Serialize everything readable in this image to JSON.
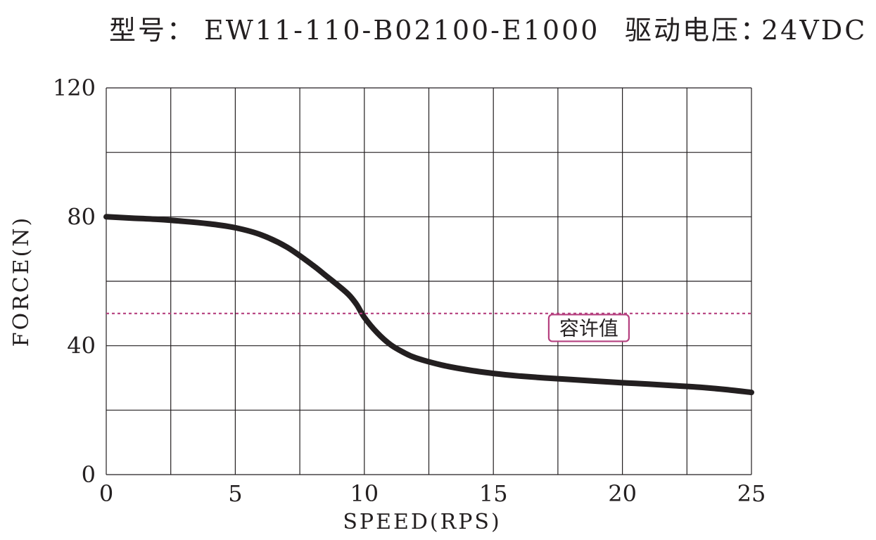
{
  "header": {
    "model_label": "型号：",
    "model_value": "EW11-110-B02100-E1000",
    "voltage_label": "驱动电压：",
    "voltage_value": "24VDC"
  },
  "chart_data": {
    "type": "line",
    "title": "",
    "xlabel": "SPEED(RPS)",
    "ylabel": "FORCE(N)",
    "xlim": [
      0,
      25
    ],
    "ylim": [
      0,
      120
    ],
    "xticks": [
      0,
      5,
      10,
      15,
      20,
      25
    ],
    "yticks": [
      0,
      40,
      80,
      120
    ],
    "grid": true,
    "grid_x_step": 2.5,
    "grid_y_step": 20,
    "series": [
      {
        "color": "#231f20",
        "x": [
          0,
          1,
          2,
          3,
          4,
          5,
          6,
          7,
          8,
          8.5,
          9,
          9.4,
          9.7,
          10,
          10.5,
          11,
          11.5,
          12,
          13,
          14,
          15,
          16,
          17,
          18,
          19,
          20,
          21,
          22,
          23,
          24,
          25
        ],
        "y": [
          80,
          79.6,
          79.2,
          78.6,
          77.8,
          76.6,
          74.4,
          70.6,
          65,
          61.8,
          58.6,
          55.8,
          52.8,
          48.8,
          44,
          40.4,
          38,
          36.2,
          34,
          32.5,
          31.4,
          30.6,
          30,
          29.5,
          29,
          28.5,
          28.1,
          27.6,
          27.1,
          26.4,
          25.5
        ]
      },
      {
        "color": "#b5407f",
        "dashed": true,
        "x": [
          0,
          25
        ],
        "y": [
          50,
          50
        ]
      }
    ],
    "annotations": [
      {
        "text": "容许值",
        "x": 18.7,
        "y": 45.5,
        "border_color": "#b5407f"
      }
    ]
  }
}
